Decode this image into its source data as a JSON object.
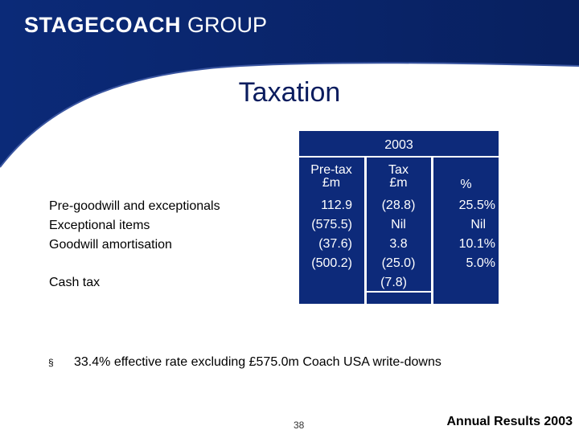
{
  "header": {
    "logo_bold": "STAGECOACH",
    "logo_light": "GROUP"
  },
  "slide": {
    "title": "Taxation"
  },
  "table": {
    "year": "2003",
    "columns": [
      {
        "line1": "Pre-tax",
        "line2": "£m"
      },
      {
        "line1": "Tax",
        "line2": "£m"
      },
      {
        "line1": "",
        "line2": "%"
      }
    ],
    "rows": [
      {
        "label": "Pre-goodwill and exceptionals",
        "pretax": "112.9",
        "tax": "(28.8)",
        "pct": "25.5%"
      },
      {
        "label": "Exceptional items",
        "pretax": "(575.5)",
        "tax": "Nil",
        "pct": "Nil"
      },
      {
        "label": "Goodwill amortisation",
        "pretax": "(37.6)",
        "tax": "3.8",
        "pct": "10.1%"
      },
      {
        "label": "",
        "pretax": "(500.2)",
        "tax": "(25.0)",
        "pct": "5.0%"
      },
      {
        "label": "Cash tax",
        "pretax": "",
        "tax": "(7.8)",
        "pct": ""
      }
    ]
  },
  "bullets": [
    {
      "symbol": "§",
      "text": "33.4% effective rate excluding £575.0m Coach USA write-downs"
    }
  ],
  "footer": {
    "page_number": "38",
    "text": "Annual Results 2003"
  }
}
